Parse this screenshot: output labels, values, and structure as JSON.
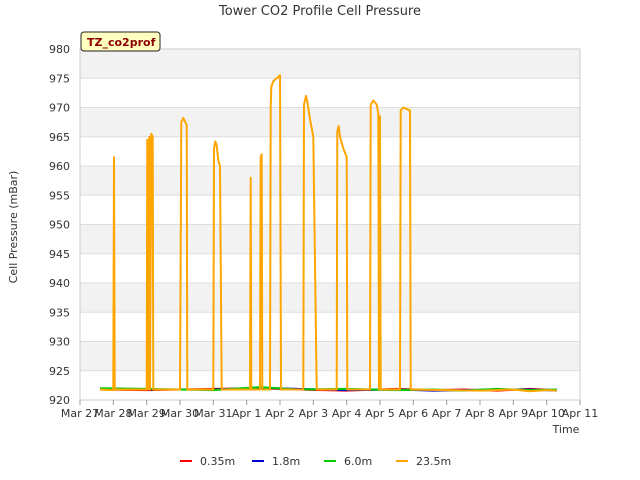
{
  "chart_data": {
    "type": "line",
    "title": "Tower CO2 Profile Cell Pressure",
    "xlabel": "Time",
    "ylabel": "Cell Pressure (mBar)",
    "site_badge": "TZ_co2prof",
    "ylim": [
      920,
      980
    ],
    "yticks": [
      920,
      925,
      930,
      935,
      940,
      945,
      950,
      955,
      960,
      965,
      970,
      975,
      980
    ],
    "xlim": [
      0,
      15
    ],
    "xticks": [
      {
        "t": 0,
        "label": "Mar 27"
      },
      {
        "t": 1,
        "label": "Mar 28"
      },
      {
        "t": 2,
        "label": "Mar 29"
      },
      {
        "t": 3,
        "label": "Mar 30"
      },
      {
        "t": 4,
        "label": "Mar 31"
      },
      {
        "t": 5,
        "label": "Apr 1"
      },
      {
        "t": 6,
        "label": "Apr 2"
      },
      {
        "t": 7,
        "label": "Apr 3"
      },
      {
        "t": 8,
        "label": "Apr 4"
      },
      {
        "t": 9,
        "label": "Apr 5"
      },
      {
        "t": 10,
        "label": "Apr 6"
      },
      {
        "t": 11,
        "label": "Apr 7"
      },
      {
        "t": 12,
        "label": "Apr 8"
      },
      {
        "t": 13,
        "label": "Apr 9"
      },
      {
        "t": 14,
        "label": "Apr 10"
      },
      {
        "t": 15,
        "label": "Apr 11"
      }
    ],
    "series": [
      {
        "name": "0.35m",
        "color": "#ff0000",
        "x": [
          0.6,
          2.0,
          4.0,
          5.4,
          6.5,
          8.0,
          9.5,
          10.6,
          11.5,
          12.5,
          13.5,
          14.3
        ],
        "y": [
          921.8,
          921.7,
          921.9,
          922.0,
          921.8,
          921.6,
          921.9,
          921.7,
          921.8,
          921.6,
          921.9,
          921.7
        ]
      },
      {
        "name": "1.8m",
        "color": "#0000cc",
        "x": [
          0.6,
          2.0,
          4.0,
          5.4,
          6.5,
          8.0,
          9.5,
          10.6,
          11.5,
          12.5,
          13.5,
          14.3
        ],
        "y": [
          921.9,
          921.8,
          921.8,
          922.1,
          921.9,
          921.7,
          921.8,
          921.6,
          921.7,
          921.8,
          921.8,
          921.6
        ]
      },
      {
        "name": "6.0m",
        "color": "#00cc00",
        "x": [
          0.6,
          2.0,
          4.0,
          5.4,
          6.5,
          8.0,
          9.5,
          10.6,
          11.5,
          12.5,
          13.5,
          14.3
        ],
        "y": [
          922.0,
          921.9,
          921.7,
          922.2,
          921.8,
          921.9,
          921.7,
          921.8,
          921.6,
          921.9,
          921.7,
          921.8
        ]
      },
      {
        "name": "23.5m",
        "color": "#ffa500",
        "x": [
          0.6,
          1.0,
          1.02,
          1.04,
          1.06,
          2.0,
          2.02,
          2.04,
          2.08,
          2.1,
          2.14,
          2.18,
          2.2,
          2.22,
          3.0,
          3.04,
          3.1,
          3.2,
          3.22,
          3.24,
          4.0,
          4.02,
          4.06,
          4.1,
          4.15,
          4.2,
          4.25,
          4.27,
          4.3,
          5.1,
          5.12,
          5.14,
          5.4,
          5.42,
          5.45,
          5.47,
          5.7,
          5.72,
          5.74,
          5.8,
          5.9,
          6.0,
          6.03,
          6.05,
          6.7,
          6.72,
          6.78,
          6.82,
          6.9,
          7.0,
          7.1,
          7.12,
          7.14,
          7.7,
          7.72,
          7.76,
          7.8,
          7.9,
          8.0,
          8.02,
          8.04,
          8.7,
          8.72,
          8.8,
          8.9,
          8.95,
          8.97,
          9.0,
          9.02,
          9.04,
          9.6,
          9.62,
          9.7,
          9.9,
          9.92,
          9.94,
          11.0,
          12.0,
          13.0,
          13.5,
          14.0,
          14.3
        ],
        "y": [
          921.8,
          921.7,
          961.5,
          921.7,
          921.8,
          921.8,
          964.5,
          921.8,
          965.0,
          921.8,
          965.5,
          965.0,
          921.8,
          921.8,
          921.8,
          967.5,
          968.2,
          967.0,
          921.8,
          921.8,
          921.8,
          963.0,
          964.2,
          963.5,
          961.0,
          960.0,
          921.8,
          921.8,
          921.8,
          921.8,
          958.0,
          921.8,
          921.8,
          961.5,
          962.0,
          921.8,
          921.8,
          970.0,
          973.5,
          974.5,
          975.0,
          975.5,
          921.8,
          921.8,
          921.8,
          970.5,
          972.0,
          971.0,
          968.0,
          965.0,
          921.8,
          921.8,
          921.8,
          921.8,
          966.0,
          966.8,
          965.0,
          963.0,
          961.5,
          921.8,
          921.8,
          921.8,
          970.5,
          971.2,
          970.5,
          969.0,
          921.8,
          968.5,
          921.8,
          921.8,
          921.8,
          969.5,
          970.0,
          969.5,
          921.8,
          921.8,
          921.7,
          921.6,
          921.8,
          921.5,
          921.7,
          921.6
        ]
      }
    ],
    "legend_position": "bottom-center"
  }
}
